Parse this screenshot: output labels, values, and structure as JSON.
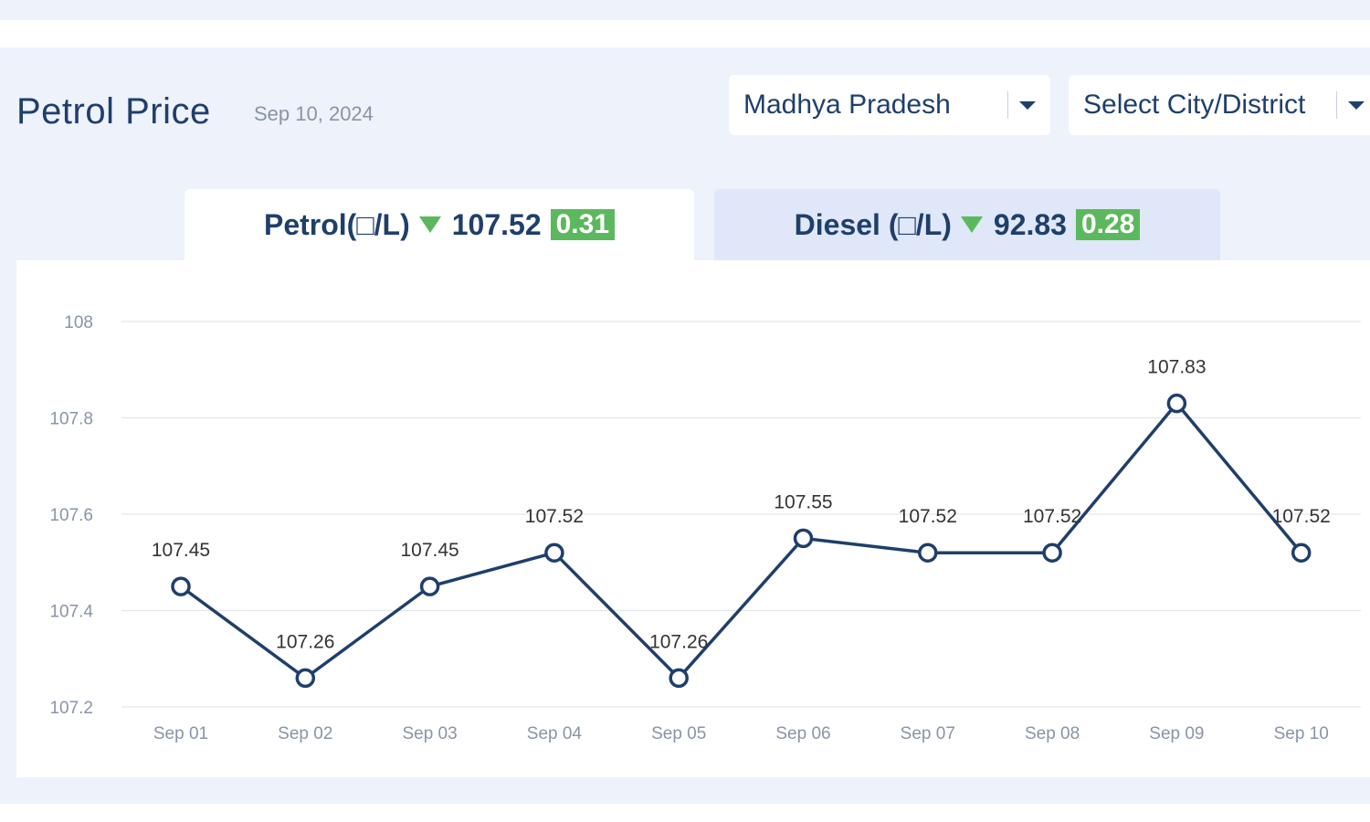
{
  "header": {
    "title": "Petrol Price",
    "date": "Sep 10, 2024"
  },
  "filters": {
    "state": "Madhya Pradesh",
    "city": "Select City/District"
  },
  "tabs": {
    "petrol": {
      "label": "Petrol(□/L)",
      "price": "107.52",
      "change": "0.31",
      "trend": "down"
    },
    "diesel": {
      "label": "Diesel (□/L)",
      "price": "92.83",
      "change": "0.28",
      "trend": "down"
    }
  },
  "colors": {
    "line": "#1f3f6b",
    "badge": "#5cb85c",
    "panel": "#edf2fb"
  },
  "chart_data": {
    "type": "line",
    "categories": [
      "Sep 01",
      "Sep 02",
      "Sep 03",
      "Sep 04",
      "Sep 05",
      "Sep 06",
      "Sep 07",
      "Sep 08",
      "Sep 09",
      "Sep 10"
    ],
    "values": [
      107.45,
      107.26,
      107.45,
      107.52,
      107.26,
      107.55,
      107.52,
      107.52,
      107.83,
      107.52
    ],
    "data_labels": [
      "107.45",
      "107.26",
      "107.45",
      "107.52",
      "107.26",
      "107.55",
      "107.52",
      "107.52",
      "107.83",
      "107.52"
    ],
    "yticks": [
      "107.2",
      "107.4",
      "107.6",
      "107.8",
      "108"
    ],
    "ylim": [
      107.2,
      108
    ],
    "grid": true,
    "legend": "none"
  }
}
